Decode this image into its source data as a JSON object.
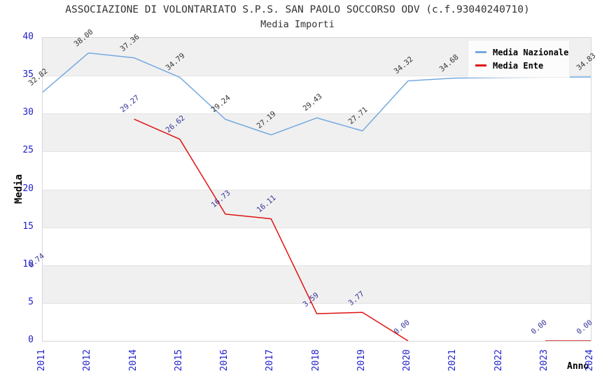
{
  "chart_data": {
    "type": "line",
    "title": "ASSOCIAZIONE DI VOLONTARIATO S.P.S. SAN PAOLO SOCCORSO ODV (c.f.93040240710)",
    "subtitle": "Media Importi",
    "xlabel": "Anno",
    "ylabel": "Media",
    "ylim": [
      0,
      40
    ],
    "yticks": [
      0,
      5,
      10,
      15,
      20,
      25,
      30,
      35,
      40
    ],
    "categories": [
      "2011",
      "2012",
      "2014",
      "2015",
      "2016",
      "2017",
      "2018",
      "2019",
      "2020",
      "2021",
      "2022",
      "2023",
      "2024"
    ],
    "series": [
      {
        "name": "Media Nazionale",
        "color": "#74a9e0",
        "label_color": "#333333",
        "values": [
          32.82,
          38.0,
          37.36,
          34.79,
          29.24,
          27.19,
          29.43,
          27.71,
          34.32,
          34.68,
          34.75,
          34.8,
          34.83
        ],
        "labels": [
          "32.82",
          "38.00",
          "37.36",
          "34.79",
          "29.24",
          "27.19",
          "29.43",
          "27.71",
          "34.32",
          "34.68",
          null,
          null,
          "34.83"
        ]
      },
      {
        "name": "Media Ente",
        "color": "#e01212",
        "label_color": "#333399",
        "values": [
          8.74,
          null,
          29.27,
          26.62,
          16.73,
          16.11,
          3.59,
          3.77,
          0.0,
          null,
          null,
          0.0,
          0.0
        ],
        "labels": [
          "8.74",
          null,
          "29.27",
          "26.62",
          "16.73",
          "16.11",
          "3.59",
          "3.77",
          "0.00",
          null,
          null,
          "0.00",
          "0.00"
        ]
      }
    ],
    "legend": {
      "position": "top-right",
      "entries": [
        "Media Nazionale",
        "Media Ente"
      ]
    },
    "styles": {
      "tick_color": "#2222cc",
      "band_color": "#f0f0f0",
      "grid_color": "#e3e3e3",
      "border_color": "#d6d6d6",
      "title_color": "#333333"
    }
  }
}
